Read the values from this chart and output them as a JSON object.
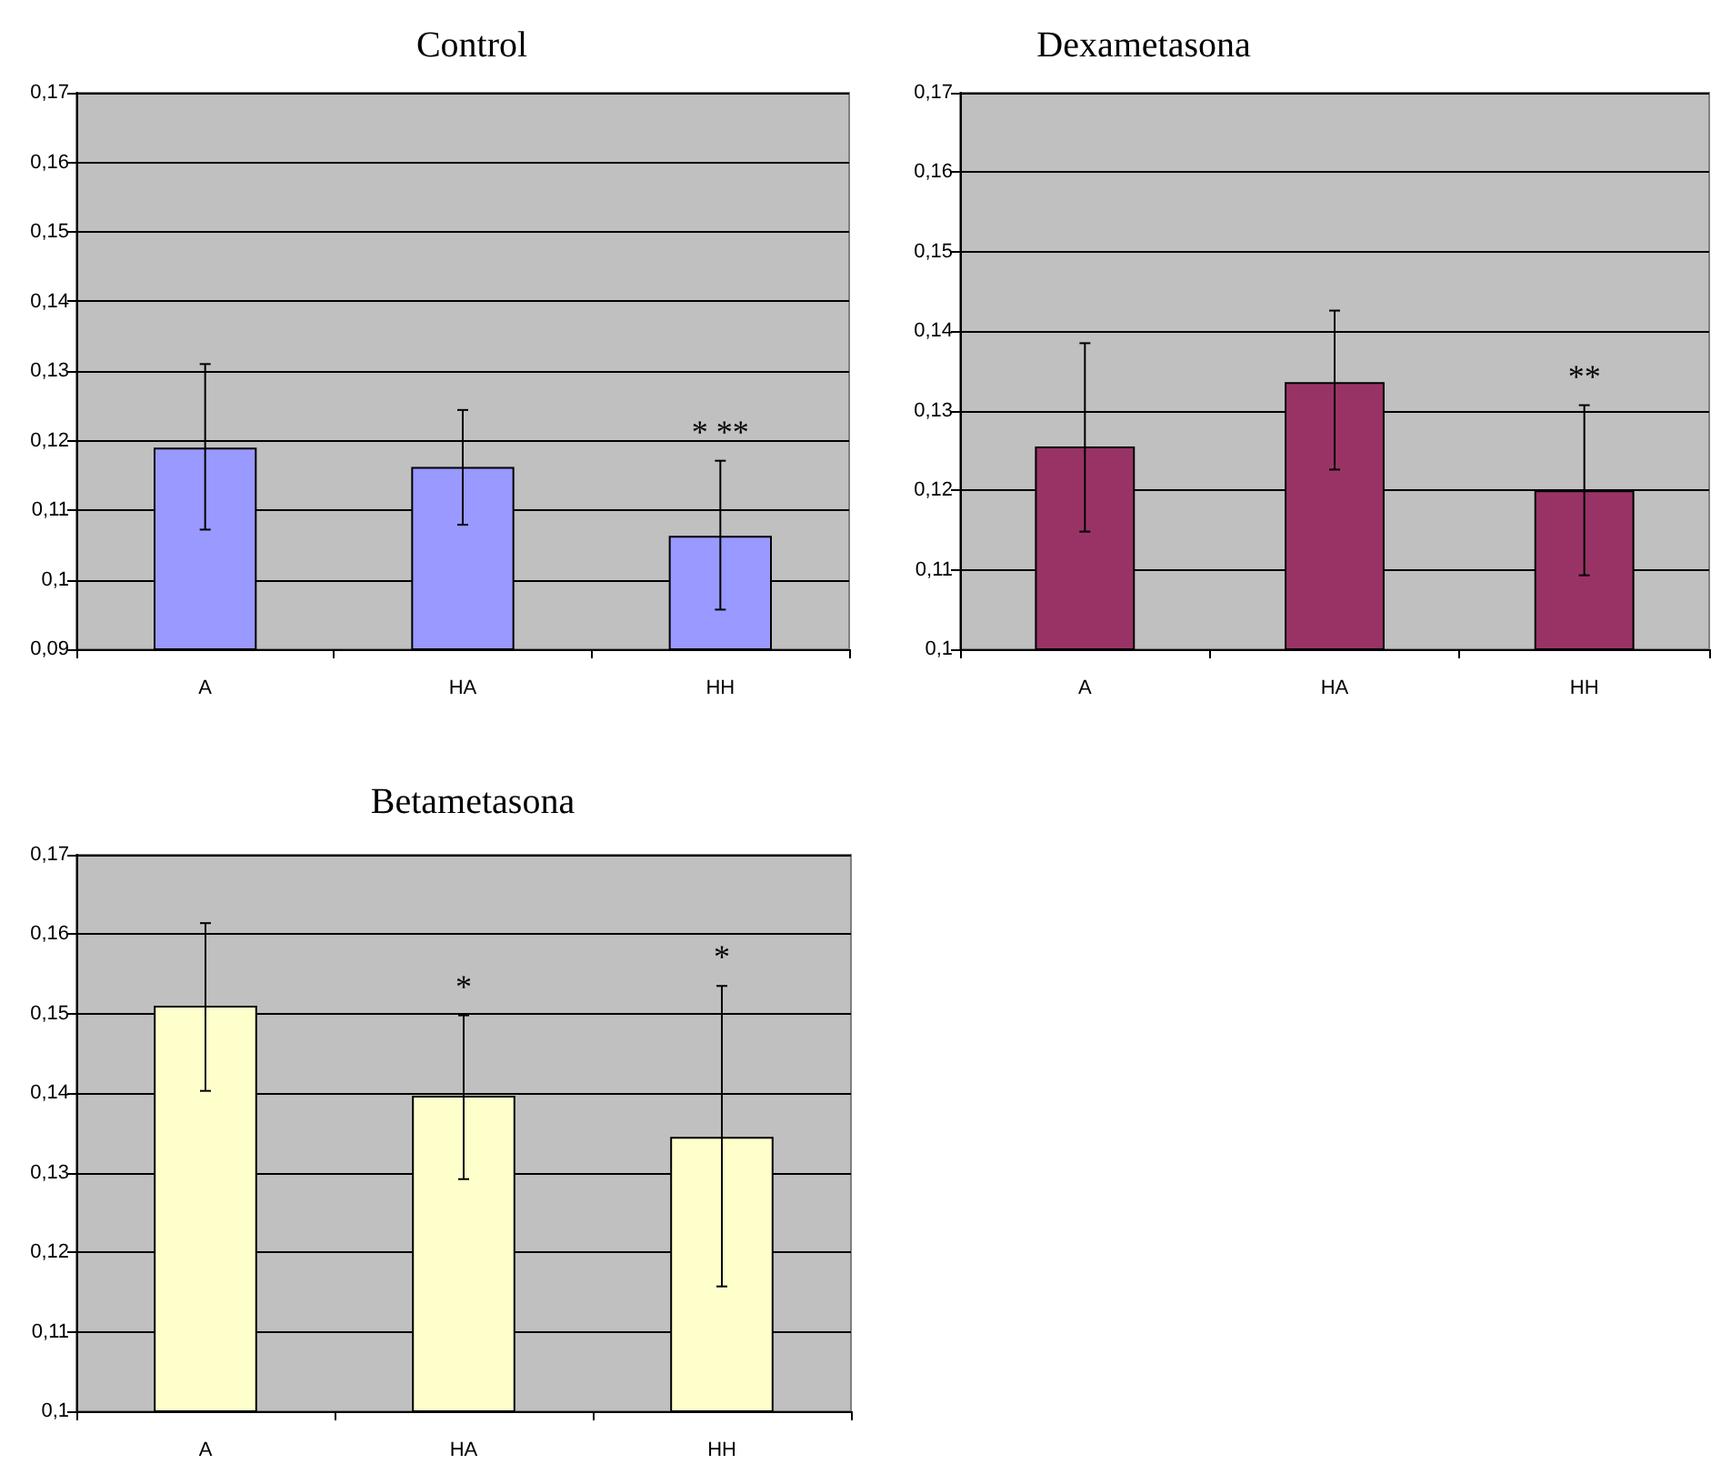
{
  "chart_data": [
    {
      "type": "bar",
      "title": "Control",
      "categories": [
        "A",
        "HA",
        "HH"
      ],
      "values": [
        0.119,
        0.1162,
        0.1063
      ],
      "color": "#9999ff",
      "errors": [
        [
          0.1072,
          0.131
        ],
        [
          0.1079,
          0.1244
        ],
        [
          0.0957,
          0.1171
        ]
      ],
      "ylim": [
        0.09,
        0.17
      ],
      "yticks": [
        {
          "value": 0.09,
          "label": "0,09"
        },
        {
          "value": 0.1,
          "label": "0,1"
        },
        {
          "value": 0.11,
          "label": "0,11"
        },
        {
          "value": 0.12,
          "label": "0,12"
        },
        {
          "value": 0.13,
          "label": "0,13"
        },
        {
          "value": 0.14,
          "label": "0,14"
        },
        {
          "value": 0.15,
          "label": "0,15"
        },
        {
          "value": 0.16,
          "label": "0,16"
        },
        {
          "value": 0.17,
          "label": "0,17"
        }
      ],
      "grid": "y",
      "annotations": [
        "* **"
      ]
    },
    {
      "type": "bar",
      "title": "Dexametasona",
      "categories": [
        "A",
        "HA",
        "HH"
      ],
      "values": [
        0.1255,
        0.1336,
        0.12
      ],
      "color": "#993366",
      "errors": [
        [
          0.1148,
          0.1385
        ],
        [
          0.1226,
          0.1426
        ],
        [
          0.1093,
          0.1307
        ]
      ],
      "ylim": [
        0.1,
        0.17
      ],
      "yticks": [
        {
          "value": 0.1,
          "label": "0,1"
        },
        {
          "value": 0.11,
          "label": "0,11"
        },
        {
          "value": 0.12,
          "label": "0,12"
        },
        {
          "value": 0.13,
          "label": "0,13"
        },
        {
          "value": 0.14,
          "label": "0,14"
        },
        {
          "value": 0.15,
          "label": "0,15"
        },
        {
          "value": 0.16,
          "label": "0,16"
        },
        {
          "value": 0.17,
          "label": "0,17"
        }
      ],
      "grid": "y",
      "annotations": [
        "**"
      ]
    },
    {
      "type": "bar",
      "title": "Betametasona",
      "categories": [
        "A",
        "HA",
        "HH"
      ],
      "values": [
        0.151,
        0.1397,
        0.1345
      ],
      "color": "#ffffcc",
      "errors": [
        [
          0.1403,
          0.1614
        ],
        [
          0.1292,
          0.1498
        ],
        [
          0.1157,
          0.1535
        ]
      ],
      "ylim": [
        0.1,
        0.17
      ],
      "yticks": [
        {
          "value": 0.1,
          "label": "0,1"
        },
        {
          "value": 0.11,
          "label": "0,11"
        },
        {
          "value": 0.12,
          "label": "0,12"
        },
        {
          "value": 0.13,
          "label": "0,13"
        },
        {
          "value": 0.14,
          "label": "0,14"
        },
        {
          "value": 0.15,
          "label": "0,15"
        },
        {
          "value": 0.16,
          "label": "0,16"
        },
        {
          "value": 0.17,
          "label": "0,17"
        }
      ],
      "grid": "y",
      "annotations": [
        "*",
        "*"
      ]
    }
  ]
}
